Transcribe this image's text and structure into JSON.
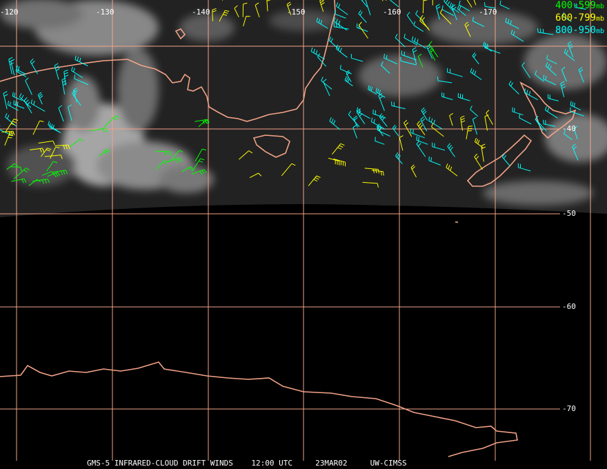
{
  "colors": {
    "coast": "#f4a488",
    "grid": "#f4a488",
    "high": "#00ff00",
    "mid": "#ffff00",
    "low": "#00ffff",
    "label": "#ffffff"
  },
  "lon_labels": [
    "-120",
    "-130",
    "-140",
    "-150",
    "-160",
    "-170"
  ],
  "lat_labels": [
    "-40",
    "-50",
    "-60",
    "-70"
  ],
  "legend": [
    {
      "range": "400-599",
      "unit": "mb",
      "color": "#00ff00"
    },
    {
      "range": "600-799",
      "unit": "mb",
      "color": "#ffff00"
    },
    {
      "range": "800-950",
      "unit": "mb",
      "color": "#00ffff"
    }
  ],
  "footer": {
    "product": "GMS-5 INFRARED-CLOUD DRIFT WINDS",
    "time": "12:00 UTC",
    "date": "23MAR02",
    "source": "UW-CIMSS"
  }
}
